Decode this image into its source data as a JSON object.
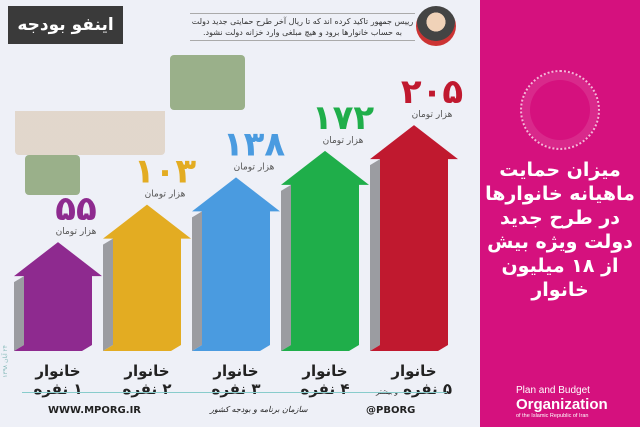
{
  "header": {
    "logo_text": "اینفو بودجه",
    "quote": "رییس جمهور تاکید کرده اند که تا ریال آخر طرح حمایتی جدید دولت به حساب خانوارها برود و هیچ مبلغی وارد خزانه دولت نشود."
  },
  "title": "میزان حمایت ماهیانه خانوارها در طرح جدید دولت ویژه بیش از ۱۸ میلیون خانوار",
  "footer": {
    "website": "WWW.MPORG.IR",
    "signature": "سازمان برنامه و بودجه کشور",
    "handle": "@PBORG",
    "date": "۲۴ آبان ۱۳۹۸"
  },
  "org": {
    "line1": "Plan and Budget",
    "line2": "Organization",
    "line3": "of the Islamic Republic of Iran"
  },
  "chart_data": {
    "type": "bar",
    "unit": "هزار تومان",
    "categories": [
      {
        "line1": "خانوار",
        "line2": "۱ نفره",
        "note": ""
      },
      {
        "line1": "خانوار",
        "line2": "۲ نفره",
        "note": ""
      },
      {
        "line1": "خانوار",
        "line2": "۳ نفره",
        "note": ""
      },
      {
        "line1": "خانوار",
        "line2": "۴ نفره",
        "note": ""
      },
      {
        "line1": "خانوار",
        "line2": "۵ نفره",
        "note": "و بیشتر"
      }
    ],
    "values": [
      55,
      103,
      138,
      172,
      205
    ],
    "value_labels": [
      "۵۵",
      "۱۰۳",
      "۱۳۸",
      "۱۷۲",
      "۲۰۵"
    ],
    "colors": [
      "#8e2a8f",
      "#e3ac22",
      "#4a9be0",
      "#1fae4a",
      "#c0192f"
    ]
  }
}
